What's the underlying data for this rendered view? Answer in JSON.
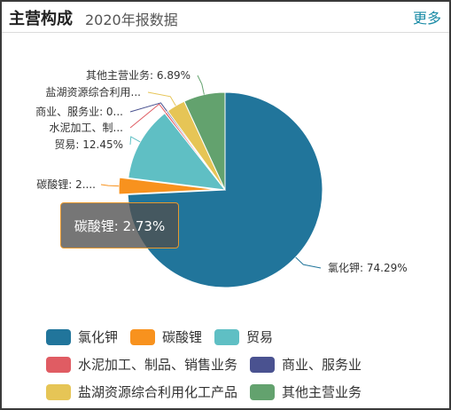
{
  "header": {
    "title": "主营构成",
    "subtitle": "2020年报数据",
    "more_label": "更多"
  },
  "tooltip": {
    "text": "碳酸锂: 2.73%"
  },
  "colors": {
    "氯化钾": "#21759b",
    "碳酸锂": "#f8921e",
    "贸易": "#5fbfc4",
    "水泥加工、制品、销售业务": "#e05c63",
    "商业、服务业": "#4a5290",
    "盐湖资源综合利用化工产品": "#e6c556",
    "其他主营业务": "#63a26e"
  },
  "chart_data": {
    "type": "pie",
    "slices": [
      {
        "name": "氯化钾",
        "value": 74.29,
        "label": "氯化钾: 74.29%"
      },
      {
        "name": "碳酸锂",
        "value": 2.73,
        "label": "碳酸锂: 2...."
      },
      {
        "name": "贸易",
        "value": 12.45,
        "label": "贸易: 12.45%"
      },
      {
        "name": "水泥加工、制品、销售业务",
        "value": 0.35,
        "label": "水泥加工、制..."
      },
      {
        "name": "商业、服务业",
        "value": 0.25,
        "label": "商业、服务业: 0..."
      },
      {
        "name": "盐湖资源综合利用化工产品",
        "value": 3.13,
        "label": "盐湖资源综合利用..."
      },
      {
        "name": "其他主营业务",
        "value": 6.89,
        "label": "其他主营业务: 6.89%"
      }
    ],
    "legend": {
      "rows": [
        [
          "氯化钾",
          "碳酸锂",
          "贸易"
        ],
        [
          "水泥加工、制品、销售业务",
          "商业、服务业"
        ],
        [
          "盐湖资源综合利用化工产品",
          "其他主营业务"
        ]
      ],
      "placement": "bottom"
    }
  }
}
